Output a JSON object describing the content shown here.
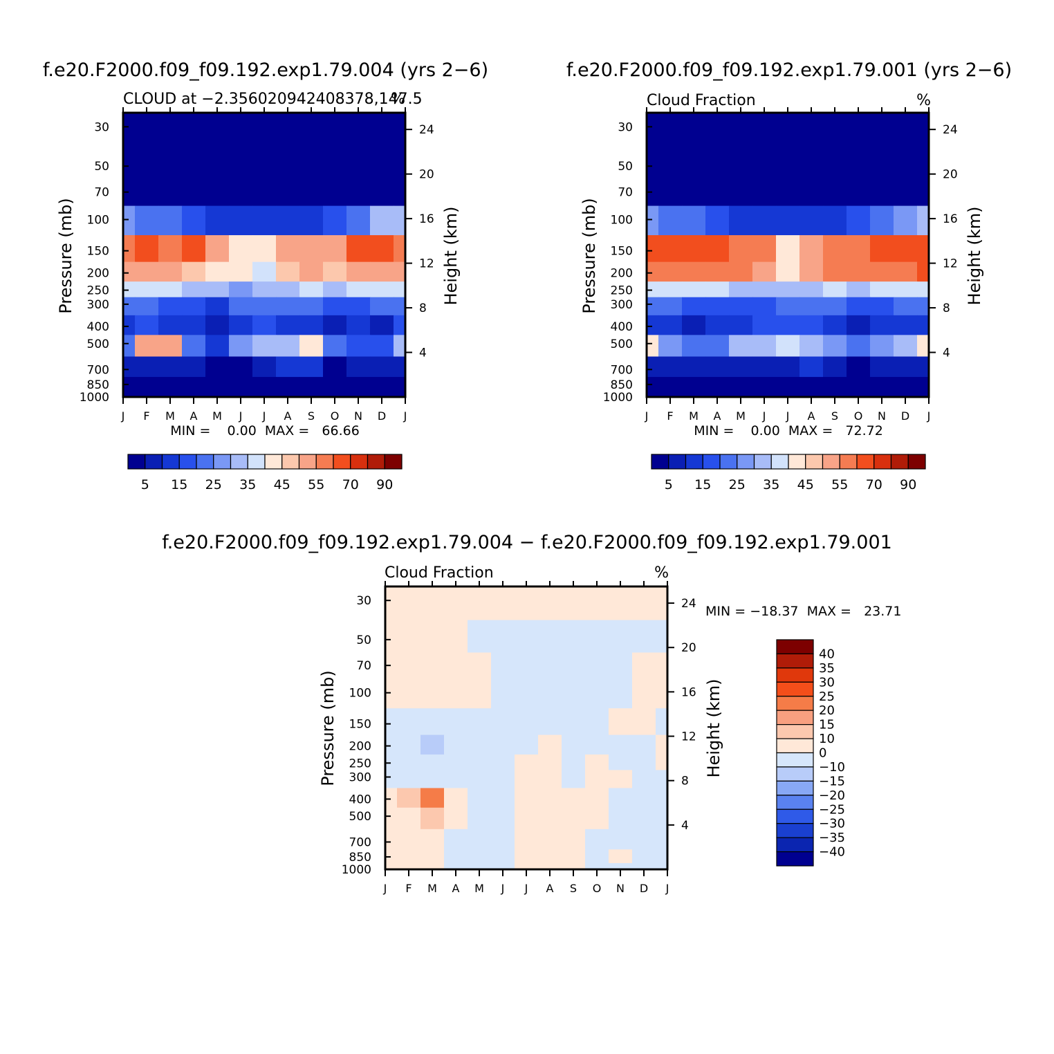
{
  "months": [
    "J",
    "F",
    "M",
    "A",
    "M",
    "J",
    "J",
    "A",
    "S",
    "O",
    "N",
    "D",
    "J"
  ],
  "left_ticks": [
    "30",
    "50",
    "70",
    "100",
    "150",
    "200",
    "250",
    "300",
    "400",
    "500",
    "700",
    "850",
    "1000"
  ],
  "right_ticks": [
    "24",
    "20",
    "16",
    "12",
    "8",
    "4"
  ],
  "pressure_label": "Pressure (mb)",
  "height_label": "Height (km)",
  "colors": {
    "abs": [
      "#000090",
      "#0a1fb4",
      "#1538d4",
      "#2850ec",
      "#4a72f0",
      "#7a98f5",
      "#a8bcf8",
      "#d2e2fb",
      "#ffe8d8",
      "#fcc8ad",
      "#f8a488",
      "#f57c52",
      "#f24e1e",
      "#d8300e",
      "#b01c08",
      "#7d0000"
    ],
    "diff": [
      "#7d0000",
      "#b01c08",
      "#e0380c",
      "#f44e1a",
      "#f57c48",
      "#f8a080",
      "#fcc8ae",
      "#ffe8d8",
      "#d6e6fb",
      "#b8ccf9",
      "#88a8f5",
      "#5a82f0",
      "#2f5ae8",
      "#1a40d0",
      "#0b25b0",
      "#000090"
    ]
  },
  "chart_data": [
    {
      "type": "heatmap",
      "panel": "top-left",
      "title": "f.e20.F2000.f09_f09.192.exp1.79.004 (yrs 2−6)",
      "subtitle": "CLOUD at −2.356020942408378,147.5",
      "units": "%",
      "xlabel": "",
      "ylabel": "Pressure (mb)",
      "ylabel_right": "Height (km)",
      "min_max": "MIN =    0.00  MAX =   66.66",
      "min": 0.0,
      "max": 66.66,
      "colorbar_labels": [
        "5",
        "15",
        "25",
        "35",
        "45",
        "55",
        "70",
        "90"
      ],
      "colorbar_levels": [
        5,
        10,
        15,
        20,
        25,
        30,
        35,
        40,
        45,
        50,
        55,
        60,
        70,
        80,
        90
      ],
      "grid_rows_pressure": [
        30,
        50,
        70,
        100,
        150,
        200,
        250,
        300,
        400,
        500,
        700,
        850,
        1000
      ],
      "grid_cols_months": [
        "J",
        "F",
        "M",
        "A",
        "M",
        "J",
        "J",
        "A",
        "S",
        "O",
        "N",
        "D",
        "J"
      ],
      "values": [
        [
          0,
          0,
          0,
          0,
          0,
          0,
          0,
          0,
          0,
          0,
          0,
          0,
          0
        ],
        [
          1,
          1,
          1,
          1,
          1,
          1,
          1,
          1,
          1,
          1,
          1,
          1,
          1
        ],
        [
          2,
          2,
          2,
          2,
          2,
          2,
          2,
          2,
          2,
          2,
          2,
          2,
          2
        ],
        [
          28,
          24,
          20,
          18,
          14,
          12,
          14,
          12,
          10,
          18,
          24,
          30,
          34
        ],
        [
          55,
          62,
          56,
          62,
          52,
          44,
          42,
          50,
          52,
          54,
          60,
          62,
          58
        ],
        [
          50,
          52,
          50,
          48,
          44,
          40,
          38,
          46,
          52,
          48,
          50,
          52,
          52
        ],
        [
          36,
          38,
          36,
          34,
          30,
          28,
          30,
          34,
          36,
          34,
          36,
          38,
          38
        ],
        [
          22,
          20,
          16,
          18,
          14,
          20,
          22,
          24,
          20,
          16,
          18,
          20,
          22
        ],
        [
          14,
          16,
          14,
          12,
          6,
          14,
          16,
          12,
          14,
          8,
          10,
          8,
          16
        ],
        [
          20,
          50,
          52,
          24,
          12,
          28,
          34,
          30,
          40,
          22,
          16,
          18,
          30
        ],
        [
          8,
          6,
          6,
          8,
          4,
          4,
          8,
          12,
          10,
          4,
          6,
          6,
          8
        ],
        [
          4,
          4,
          4,
          2,
          2,
          2,
          4,
          4,
          4,
          4,
          2,
          2,
          4
        ],
        [
          2,
          2,
          2,
          2,
          2,
          2,
          2,
          2,
          2,
          2,
          2,
          2,
          2
        ]
      ]
    },
    {
      "type": "heatmap",
      "panel": "top-right",
      "title": "f.e20.F2000.f09_f09.192.exp1.79.001 (yrs 2−6)",
      "subtitle": "Cloud Fraction",
      "units": "%",
      "xlabel": "",
      "ylabel": "Pressure (mb)",
      "ylabel_right": "Height (km)",
      "min_max": "MIN =    0.00  MAX =   72.72",
      "min": 0.0,
      "max": 72.72,
      "colorbar_labels": [
        "5",
        "15",
        "25",
        "35",
        "45",
        "55",
        "70",
        "90"
      ],
      "colorbar_levels": [
        5,
        10,
        15,
        20,
        25,
        30,
        35,
        40,
        45,
        50,
        55,
        60,
        70,
        80,
        90
      ],
      "grid_rows_pressure": [
        30,
        50,
        70,
        100,
        150,
        200,
        250,
        300,
        400,
        500,
        700,
        850,
        1000
      ],
      "grid_cols_months": [
        "J",
        "F",
        "M",
        "A",
        "M",
        "J",
        "J",
        "A",
        "S",
        "O",
        "N",
        "D",
        "J"
      ],
      "values": [
        [
          0,
          0,
          0,
          0,
          0,
          0,
          0,
          0,
          0,
          0,
          0,
          0,
          0
        ],
        [
          1,
          1,
          1,
          1,
          1,
          1,
          1,
          1,
          1,
          1,
          1,
          1,
          1
        ],
        [
          2,
          2,
          2,
          2,
          2,
          2,
          2,
          2,
          2,
          2,
          2,
          2,
          2
        ],
        [
          28,
          24,
          20,
          18,
          14,
          12,
          14,
          12,
          10,
          16,
          22,
          28,
          32
        ],
        [
          68,
          62,
          62,
          60,
          58,
          56,
          44,
          50,
          56,
          58,
          60,
          62,
          66
        ],
        [
          58,
          58,
          58,
          58,
          56,
          54,
          44,
          52,
          56,
          56,
          56,
          58,
          60
        ],
        [
          38,
          38,
          38,
          36,
          34,
          32,
          30,
          34,
          36,
          34,
          36,
          38,
          38
        ],
        [
          22,
          20,
          18,
          18,
          16,
          18,
          22,
          22,
          20,
          16,
          18,
          20,
          22
        ],
        [
          12,
          10,
          8,
          10,
          14,
          16,
          16,
          16,
          10,
          6,
          10,
          12,
          14
        ],
        [
          40,
          28,
          22,
          24,
          30,
          34,
          36,
          32,
          28,
          20,
          26,
          34,
          44
        ],
        [
          8,
          6,
          6,
          6,
          6,
          8,
          8,
          10,
          8,
          4,
          6,
          6,
          8
        ],
        [
          4,
          4,
          4,
          2,
          2,
          2,
          4,
          4,
          4,
          4,
          2,
          2,
          4
        ],
        [
          2,
          2,
          2,
          2,
          2,
          2,
          2,
          2,
          2,
          2,
          2,
          2,
          2
        ]
      ]
    },
    {
      "type": "heatmap",
      "panel": "bottom",
      "title": "f.e20.F2000.f09_f09.192.exp1.79.004 − f.e20.F2000.f09_f09.192.exp1.79.001",
      "subtitle": "Cloud Fraction",
      "units": "%",
      "xlabel": "",
      "ylabel": "Pressure (mb)",
      "ylabel_right": "Height (km)",
      "min_max": "MIN = −18.37  MAX =   23.71",
      "min": -18.37,
      "max": 23.71,
      "colorbar_labels": [
        "40",
        "35",
        "30",
        "25",
        "20",
        "15",
        "10",
        "0",
        "−10",
        "−15",
        "−20",
        "−25",
        "−30",
        "−35",
        "−40"
      ],
      "colorbar_levels": [
        40,
        35,
        30,
        25,
        20,
        15,
        10,
        0,
        -10,
        -15,
        -20,
        -25,
        -30,
        -35,
        -40
      ],
      "grid_rows_pressure": [
        30,
        50,
        70,
        100,
        150,
        200,
        250,
        300,
        400,
        500,
        700,
        850,
        1000
      ],
      "grid_cols_months": [
        "J",
        "F",
        "M",
        "A",
        "M",
        "J",
        "J",
        "A",
        "S",
        "O",
        "N",
        "D",
        "J"
      ],
      "values": [
        [
          2,
          2,
          2,
          2,
          2,
          2,
          2,
          2,
          2,
          2,
          2,
          2,
          2
        ],
        [
          1,
          1,
          1,
          1,
          -1,
          -1,
          -1,
          -1,
          -1,
          -1,
          -1,
          -1,
          -1
        ],
        [
          2,
          2,
          2,
          2,
          2,
          -1,
          -1,
          -1,
          -1,
          -1,
          -1,
          1,
          1
        ],
        [
          2,
          2,
          2,
          2,
          2,
          -1,
          -1,
          -1,
          -1,
          -1,
          -1,
          2,
          2
        ],
        [
          -2,
          -2,
          -4,
          -2,
          -2,
          -8,
          -2,
          -6,
          -2,
          -2,
          2,
          2,
          -2
        ],
        [
          -2,
          -4,
          -12,
          -4,
          -2,
          -6,
          -2,
          4,
          -2,
          -2,
          -2,
          -2,
          2
        ],
        [
          -2,
          -2,
          -4,
          -2,
          -2,
          -2,
          2,
          4,
          -2,
          2,
          -2,
          -2,
          2
        ],
        [
          -2,
          -2,
          -2,
          -2,
          -2,
          -2,
          2,
          2,
          -2,
          2,
          2,
          -2,
          -2
        ],
        [
          2,
          12,
          20,
          8,
          -2,
          -2,
          4,
          4,
          2,
          2,
          -2,
          -2,
          -2
        ],
        [
          2,
          8,
          14,
          2,
          -8,
          -2,
          4,
          2,
          2,
          2,
          -2,
          -10,
          -2
        ],
        [
          2,
          2,
          2,
          -1,
          -2,
          -2,
          2,
          2,
          2,
          -1,
          -2,
          -2,
          -2
        ],
        [
          2,
          2,
          2,
          -1,
          -2,
          -1,
          2,
          2,
          2,
          -1,
          2,
          -1,
          -1
        ],
        [
          2,
          2,
          2,
          -1,
          -1,
          -1,
          2,
          2,
          2,
          -1,
          -1,
          -1,
          -1
        ]
      ]
    }
  ]
}
